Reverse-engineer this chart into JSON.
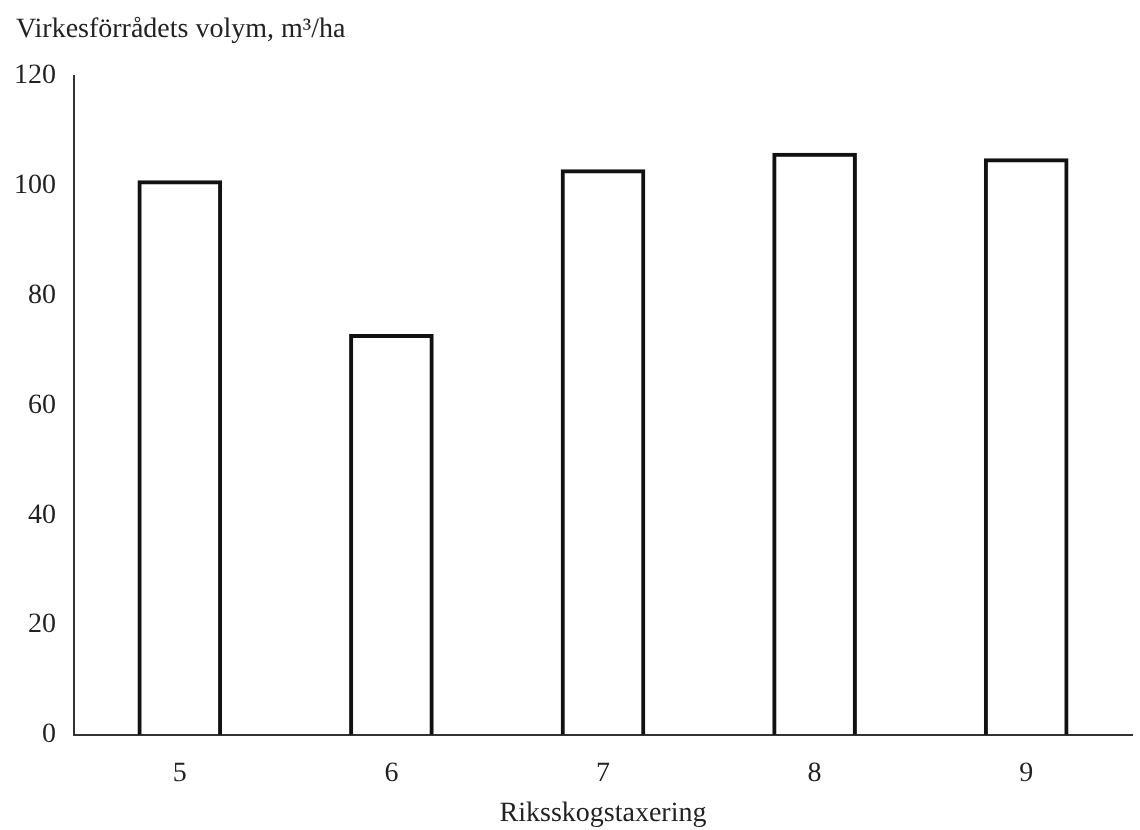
{
  "chart_data": {
    "type": "bar",
    "ylabel": "Virkesförrådets volym, m³/ha",
    "xlabel": "Riksskogstaxering",
    "categories": [
      "5",
      "6",
      "7",
      "8",
      "9"
    ],
    "values": [
      101,
      73,
      103,
      106,
      105
    ],
    "color": "#111111",
    "ylim": [
      0,
      120
    ],
    "yticks": [
      0,
      20,
      40,
      60,
      80,
      100,
      120
    ],
    "grid": false
  }
}
